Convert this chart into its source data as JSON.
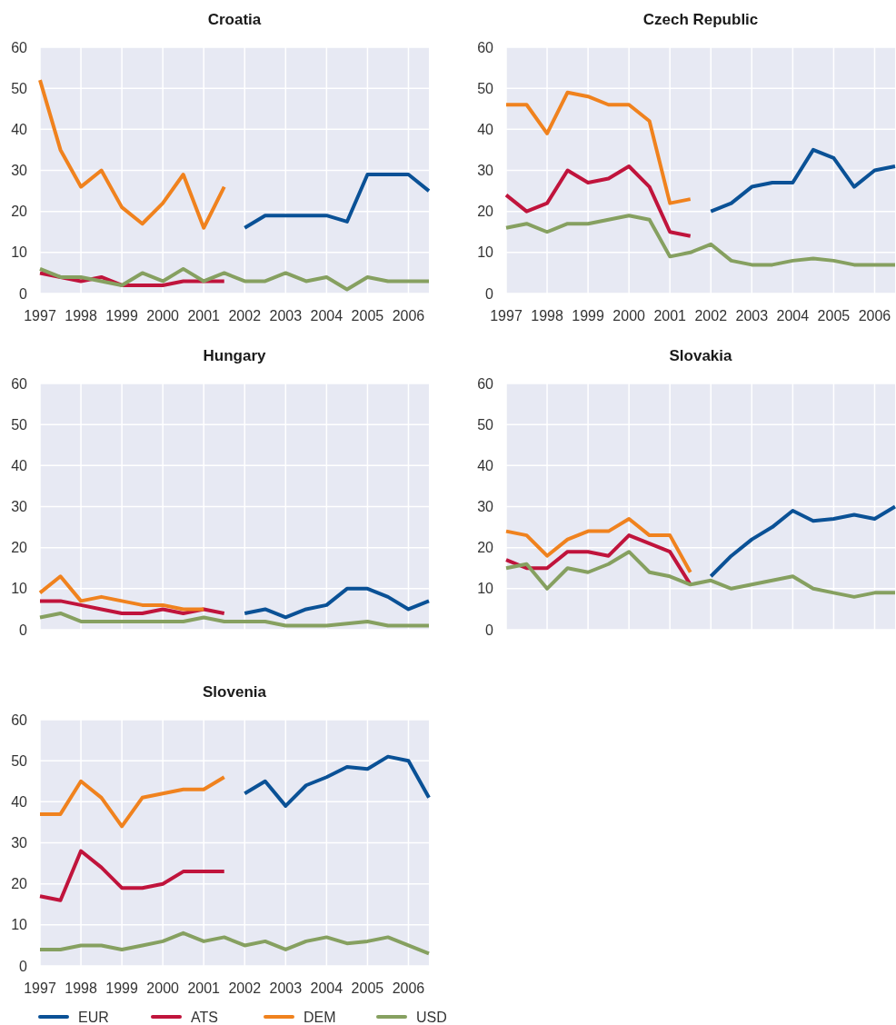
{
  "chart_data": [
    {
      "type": "line",
      "title": "Croatia",
      "x": [
        1997,
        1997.5,
        1998,
        1998.5,
        1999,
        1999.5,
        2000,
        2000.5,
        2001,
        2001.5,
        2002,
        2002.5,
        2003,
        2003.5,
        2004,
        2004.5,
        2005,
        2005.5,
        2006,
        2006.5
      ],
      "xlim": [
        1997,
        2006.5
      ],
      "xticks": [
        1997,
        1998,
        1999,
        2000,
        2001,
        2002,
        2003,
        2004,
        2005,
        2006
      ],
      "ylim": [
        0,
        60
      ],
      "yticks": [
        0,
        10,
        20,
        30,
        40,
        50,
        60
      ],
      "grid": true,
      "series": [
        {
          "color": "#0a5196",
          "values": [
            null,
            null,
            null,
            null,
            null,
            null,
            null,
            null,
            null,
            null,
            16,
            19,
            19,
            19,
            19,
            17.5,
            29,
            29,
            29,
            25
          ]
        },
        {
          "color": "#c0143c",
          "values": [
            5,
            4,
            3,
            4,
            2,
            2,
            2,
            3,
            3,
            3,
            null,
            null,
            null,
            null,
            null,
            null,
            null,
            null,
            null,
            null
          ]
        },
        {
          "color": "#f0821e",
          "values": [
            52,
            35,
            26,
            30,
            21,
            17,
            22,
            29,
            16,
            26,
            null,
            null,
            null,
            null,
            null,
            null,
            null,
            null,
            null,
            null
          ]
        },
        {
          "color": "#86a060",
          "values": [
            6,
            4,
            4,
            3,
            2,
            5,
            3,
            6,
            3,
            5,
            3,
            3,
            5,
            3,
            4,
            1,
            4,
            3,
            3,
            3
          ]
        }
      ]
    },
    {
      "type": "line",
      "title": "Czech Republic",
      "x": [
        1997,
        1997.5,
        1998,
        1998.5,
        1999,
        1999.5,
        2000,
        2000.5,
        2001,
        2001.5,
        2002,
        2002.5,
        2003,
        2003.5,
        2004,
        2004.5,
        2005,
        2005.5,
        2006,
        2006.5
      ],
      "xlim": [
        1997,
        2006.5
      ],
      "xticks": [
        1997,
        1998,
        1999,
        2000,
        2001,
        2002,
        2003,
        2004,
        2005,
        2006
      ],
      "ylim": [
        0,
        60
      ],
      "yticks": [
        0,
        10,
        20,
        30,
        40,
        50,
        60
      ],
      "grid": true,
      "series": [
        {
          "color": "#0a5196",
          "values": [
            null,
            null,
            null,
            null,
            null,
            null,
            null,
            null,
            null,
            null,
            20,
            22,
            26,
            27,
            27,
            35,
            33,
            26,
            30,
            31
          ]
        },
        {
          "color": "#c0143c",
          "values": [
            24,
            20,
            22,
            30,
            27,
            28,
            31,
            26,
            15,
            14,
            null,
            null,
            null,
            null,
            null,
            null,
            null,
            null,
            null,
            null
          ]
        },
        {
          "color": "#f0821e",
          "values": [
            46,
            46,
            39,
            49,
            48,
            46,
            46,
            42,
            22,
            23,
            null,
            null,
            null,
            null,
            null,
            null,
            null,
            null,
            null,
            null
          ]
        },
        {
          "color": "#86a060",
          "values": [
            16,
            17,
            15,
            17,
            17,
            18,
            19,
            18,
            9,
            10,
            12,
            8,
            7,
            7,
            8,
            8.5,
            8,
            7,
            7,
            7
          ]
        }
      ]
    },
    {
      "type": "line",
      "title": "Hungary",
      "x": [
        1997,
        1997.5,
        1998,
        1998.5,
        1999,
        1999.5,
        2000,
        2000.5,
        2001,
        2001.5,
        2002,
        2002.5,
        2003,
        2003.5,
        2004,
        2004.5,
        2005,
        2005.5,
        2006,
        2006.5
      ],
      "xlim": [
        1997,
        2006.5
      ],
      "xticks": [
        1997,
        1998,
        1999,
        2000,
        2001,
        2002,
        2003,
        2004,
        2005,
        2006
      ],
      "ylim": [
        0,
        60
      ],
      "yticks": [
        0,
        10,
        20,
        30,
        40,
        50,
        60
      ],
      "grid": true,
      "tick_labels": "y",
      "series": [
        {
          "color": "#0a5196",
          "values": [
            null,
            null,
            null,
            null,
            null,
            null,
            null,
            null,
            null,
            null,
            4,
            5,
            3,
            5,
            6,
            10,
            10,
            8,
            5,
            7
          ]
        },
        {
          "color": "#c0143c",
          "values": [
            7,
            7,
            6,
            5,
            4,
            4,
            5,
            4,
            5,
            4,
            null,
            null,
            null,
            null,
            null,
            null,
            null,
            null,
            null,
            null
          ]
        },
        {
          "color": "#f0821e",
          "values": [
            9,
            13,
            7,
            8,
            7,
            6,
            6,
            5,
            5,
            null,
            null,
            null,
            null,
            null,
            null,
            null,
            null,
            null,
            null,
            null
          ]
        },
        {
          "color": "#86a060",
          "values": [
            3,
            4,
            2,
            2,
            2,
            2,
            2,
            2,
            3,
            2,
            2,
            2,
            1,
            1,
            1,
            1.5,
            2,
            1,
            1,
            1
          ]
        }
      ]
    },
    {
      "type": "line",
      "title": "Slovakia",
      "x": [
        1997,
        1997.5,
        1998,
        1998.5,
        1999,
        1999.5,
        2000,
        2000.5,
        2001,
        2001.5,
        2002,
        2002.5,
        2003,
        2003.5,
        2004,
        2004.5,
        2005,
        2005.5,
        2006,
        2006.5
      ],
      "xlim": [
        1997,
        2006.5
      ],
      "xticks": [
        1997,
        1998,
        1999,
        2000,
        2001,
        2002,
        2003,
        2004,
        2005,
        2006
      ],
      "ylim": [
        0,
        60
      ],
      "yticks": [
        0,
        10,
        20,
        30,
        40,
        50,
        60
      ],
      "grid": true,
      "tick_labels": "y",
      "series": [
        {
          "color": "#0a5196",
          "values": [
            null,
            null,
            null,
            null,
            null,
            null,
            null,
            null,
            null,
            null,
            13,
            18,
            22,
            25,
            29,
            26.5,
            27,
            28,
            27,
            30
          ]
        },
        {
          "color": "#c0143c",
          "values": [
            17,
            15,
            15,
            19,
            19,
            18,
            23,
            21,
            19,
            11,
            null,
            null,
            null,
            null,
            null,
            null,
            null,
            null,
            null,
            null
          ]
        },
        {
          "color": "#f0821e",
          "values": [
            24,
            23,
            18,
            22,
            24,
            24,
            27,
            23,
            23,
            14,
            null,
            null,
            null,
            null,
            null,
            null,
            null,
            null,
            null,
            null
          ]
        },
        {
          "color": "#86a060",
          "values": [
            15,
            16,
            10,
            15,
            14,
            16,
            19,
            14,
            13,
            11,
            12,
            10,
            11,
            12,
            13,
            10,
            9,
            8,
            9,
            9
          ]
        }
      ]
    },
    {
      "type": "line",
      "title": "Slovenia",
      "x": [
        1997,
        1997.5,
        1998,
        1998.5,
        1999,
        1999.5,
        2000,
        2000.5,
        2001,
        2001.5,
        2002,
        2002.5,
        2003,
        2003.5,
        2004,
        2004.5,
        2005,
        2005.5,
        2006,
        2006.5
      ],
      "xlim": [
        1997,
        2006.5
      ],
      "xticks": [
        1997,
        1998,
        1999,
        2000,
        2001,
        2002,
        2003,
        2004,
        2005,
        2006
      ],
      "ylim": [
        0,
        60
      ],
      "yticks": [
        0,
        10,
        20,
        30,
        40,
        50,
        60
      ],
      "grid": true,
      "legend": "bottom",
      "series": [
        {
          "name": "EUR",
          "color": "#0a5196",
          "values": [
            null,
            null,
            null,
            null,
            null,
            null,
            null,
            null,
            null,
            null,
            42,
            45,
            39,
            44,
            46,
            48.5,
            48,
            51,
            50,
            41
          ]
        },
        {
          "name": "ATS",
          "color": "#c0143c",
          "values": [
            17,
            16,
            28,
            24,
            19,
            19,
            20,
            23,
            23,
            23,
            null,
            null,
            null,
            null,
            null,
            null,
            null,
            null,
            null,
            null
          ]
        },
        {
          "name": "DEM",
          "color": "#f0821e",
          "values": [
            37,
            37,
            45,
            41,
            34,
            41,
            42,
            43,
            43,
            46,
            null,
            null,
            null,
            null,
            null,
            null,
            null,
            null,
            null,
            null
          ]
        },
        {
          "name": "USD",
          "color": "#86a060",
          "values": [
            4,
            4,
            5,
            5,
            4,
            5,
            6,
            8,
            6,
            7,
            5,
            6,
            4,
            6,
            7,
            5.5,
            6,
            7,
            5,
            3
          ]
        }
      ]
    }
  ]
}
